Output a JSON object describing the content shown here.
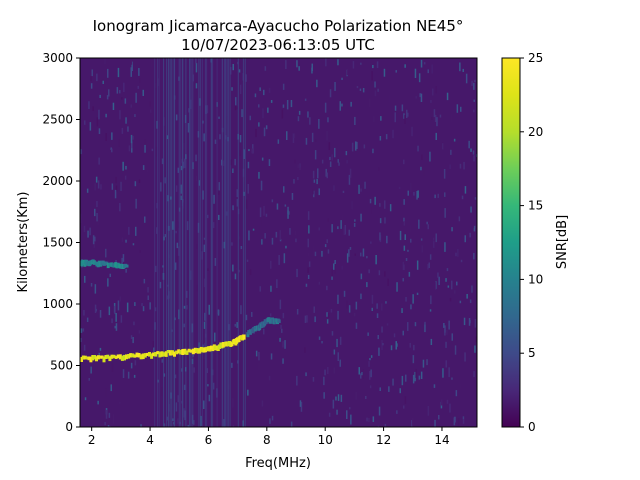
{
  "chart_data": {
    "type": "heatmap",
    "title_line1": "Ionogram Jicamarca-Ayacucho Polarization NE45°",
    "title_line2": "10/07/2023-06:13:05 UTC",
    "xlabel": "Freq(MHz)",
    "ylabel": "Kilometers(Km)",
    "xlim": [
      1.6,
      15.2
    ],
    "ylim": [
      0,
      3000
    ],
    "xticks": [
      2,
      4,
      6,
      8,
      10,
      12,
      14
    ],
    "yticks": [
      0,
      500,
      1000,
      1500,
      2000,
      2500,
      3000
    ],
    "colorbar": {
      "label": "SNR[dB]",
      "min": 0,
      "max": 25,
      "ticks": [
        0,
        5,
        10,
        15,
        20,
        25
      ],
      "colormap": "viridis"
    },
    "background_level_db": 1.5,
    "traces": [
      {
        "layer": "F-layer echo",
        "points": [
          [
            1.6,
            560
          ],
          [
            2.5,
            565
          ],
          [
            3.5,
            580
          ],
          [
            4.5,
            600
          ],
          [
            5.5,
            620
          ],
          [
            6.2,
            650
          ],
          [
            6.8,
            690
          ],
          [
            7.2,
            740
          ]
        ],
        "snr_db": 25
      },
      {
        "layer": "second hop",
        "points": [
          [
            1.6,
            1335
          ],
          [
            2.0,
            1340
          ],
          [
            2.6,
            1320
          ],
          [
            3.2,
            1310
          ]
        ],
        "snr_db": 12
      },
      {
        "layer": "noise spread",
        "points": [
          [
            7.3,
            760
          ],
          [
            7.7,
            820
          ],
          [
            8.0,
            870
          ],
          [
            8.4,
            860
          ]
        ],
        "snr_db": 10
      }
    ]
  }
}
